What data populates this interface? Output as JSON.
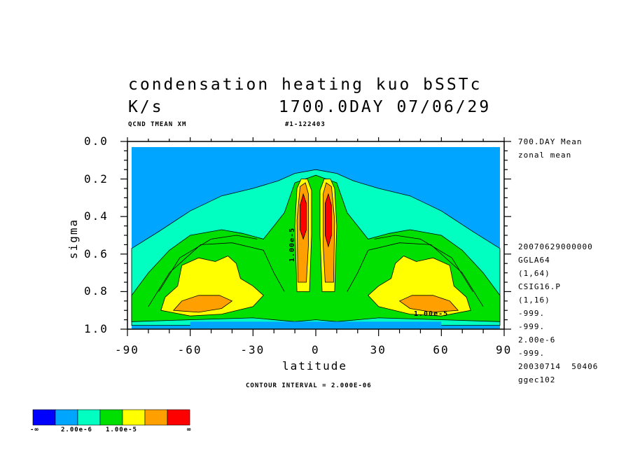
{
  "title": {
    "line1": "condensation heating kuo bSSTc",
    "units": "K/s",
    "date": "1700.0DAY 07/06/29"
  },
  "subheader": {
    "field": "QCND TMEAN XM",
    "run": "#1-122403"
  },
  "side_notes": {
    "top": [
      "700.DAY Mean",
      "zonal mean"
    ],
    "info": [
      "20070629000000",
      "GGLA64",
      "(1,64)",
      "CSIG16.P",
      "(1,16)",
      "-999.",
      "-999.",
      "2.00e-6",
      "-999.",
      "20030714  50406",
      "ggec102"
    ]
  },
  "contour_interval": "CONTOUR INTERVAL = 2.000E-06",
  "contour_labels": [
    "1.00e-5",
    "1.00e-5"
  ],
  "colorbar": {
    "colors": [
      "#0000ff",
      "#00a5ff",
      "#00ffc0",
      "#00e000",
      "#ffff00",
      "#ffa000",
      "#ff0000"
    ],
    "labels": [
      "-∞",
      "2.00e-6",
      "1.00e-5",
      "∞"
    ]
  },
  "chart_data": {
    "type": "contour",
    "xlabel": "latitude",
    "ylabel": "sigma",
    "xlim": [
      -90,
      90
    ],
    "ylim": [
      1.0,
      0.0
    ],
    "xticks": [
      -90,
      -60,
      -30,
      0,
      30,
      60,
      90
    ],
    "yticks": [
      0.0,
      0.2,
      0.4,
      0.6,
      0.8,
      1.0
    ],
    "xtick_labels": [
      "-90",
      "-60",
      "-30",
      "0",
      "30",
      "60",
      "90"
    ],
    "ytick_labels": [
      "0.0",
      "0.2",
      "0.4",
      "0.6",
      "0.8",
      "1.0"
    ],
    "levels_k_per_s": [
      0,
      2e-06,
      1e-05
    ],
    "regions": [
      {
        "level": "cyan",
        "polygon": [
          [
            -88,
            0.57
          ],
          [
            -75,
            0.48
          ],
          [
            -60,
            0.37
          ],
          [
            -45,
            0.29
          ],
          [
            -30,
            0.25
          ],
          [
            -18,
            0.21
          ],
          [
            -10,
            0.17
          ],
          [
            0,
            0.15
          ],
          [
            10,
            0.17
          ],
          [
            18,
            0.21
          ],
          [
            30,
            0.25
          ],
          [
            45,
            0.29
          ],
          [
            60,
            0.37
          ],
          [
            75,
            0.48
          ],
          [
            88,
            0.57
          ],
          [
            88,
            0.98
          ],
          [
            -88,
            0.98
          ]
        ]
      },
      {
        "level": "green",
        "polygon": [
          [
            -88,
            0.82
          ],
          [
            -80,
            0.7
          ],
          [
            -70,
            0.58
          ],
          [
            -60,
            0.5
          ],
          [
            -45,
            0.47
          ],
          [
            -35,
            0.49
          ],
          [
            -25,
            0.52
          ],
          [
            -15,
            0.38
          ],
          [
            -10,
            0.22
          ],
          [
            0,
            0.18
          ],
          [
            10,
            0.22
          ],
          [
            15,
            0.38
          ],
          [
            25,
            0.52
          ],
          [
            35,
            0.49
          ],
          [
            45,
            0.47
          ],
          [
            60,
            0.5
          ],
          [
            70,
            0.58
          ],
          [
            80,
            0.7
          ],
          [
            88,
            0.82
          ],
          [
            88,
            0.96
          ],
          [
            60,
            0.95
          ],
          [
            30,
            0.94
          ],
          [
            10,
            0.96
          ],
          [
            0,
            0.95
          ],
          [
            -10,
            0.96
          ],
          [
            -30,
            0.94
          ],
          [
            -60,
            0.95
          ],
          [
            -88,
            0.96
          ]
        ]
      },
      {
        "level": "yellow",
        "polygon": [
          [
            -74,
            0.9
          ],
          [
            -72,
            0.83
          ],
          [
            -66,
            0.77
          ],
          [
            -64,
            0.66
          ],
          [
            -56,
            0.62
          ],
          [
            -48,
            0.64
          ],
          [
            -42,
            0.61
          ],
          [
            -38,
            0.65
          ],
          [
            -36,
            0.73
          ],
          [
            -30,
            0.77
          ],
          [
            -25,
            0.82
          ],
          [
            -30,
            0.88
          ],
          [
            -45,
            0.92
          ],
          [
            -60,
            0.93
          ]
        ]
      },
      {
        "level": "yellow",
        "polygon": [
          [
            74,
            0.9
          ],
          [
            72,
            0.83
          ],
          [
            66,
            0.77
          ],
          [
            64,
            0.66
          ],
          [
            56,
            0.62
          ],
          [
            48,
            0.64
          ],
          [
            42,
            0.61
          ],
          [
            38,
            0.65
          ],
          [
            36,
            0.73
          ],
          [
            30,
            0.77
          ],
          [
            25,
            0.82
          ],
          [
            30,
            0.88
          ],
          [
            45,
            0.92
          ],
          [
            60,
            0.93
          ]
        ]
      },
      {
        "level": "orange",
        "polygon": [
          [
            -68,
            0.9
          ],
          [
            -64,
            0.85
          ],
          [
            -56,
            0.82
          ],
          [
            -46,
            0.82
          ],
          [
            -40,
            0.85
          ],
          [
            -45,
            0.89
          ],
          [
            -56,
            0.91
          ]
        ]
      },
      {
        "level": "orange",
        "polygon": [
          [
            68,
            0.9
          ],
          [
            64,
            0.85
          ],
          [
            56,
            0.82
          ],
          [
            46,
            0.82
          ],
          [
            40,
            0.85
          ],
          [
            45,
            0.89
          ],
          [
            56,
            0.91
          ]
        ]
      },
      {
        "level": "yellow",
        "polygon": [
          [
            -9,
            0.8
          ],
          [
            -10,
            0.45
          ],
          [
            -9,
            0.25
          ],
          [
            -7,
            0.2
          ],
          [
            -4,
            0.2
          ],
          [
            -2,
            0.26
          ],
          [
            -2,
            0.5
          ],
          [
            -3,
            0.8
          ]
        ]
      },
      {
        "level": "yellow",
        "polygon": [
          [
            9,
            0.8
          ],
          [
            10,
            0.45
          ],
          [
            9,
            0.25
          ],
          [
            7,
            0.2
          ],
          [
            4,
            0.2
          ],
          [
            2,
            0.26
          ],
          [
            2,
            0.5
          ],
          [
            3,
            0.8
          ]
        ]
      },
      {
        "level": "orange",
        "polygon": [
          [
            -8.5,
            0.75
          ],
          [
            -9,
            0.42
          ],
          [
            -7.5,
            0.24
          ],
          [
            -5,
            0.22
          ],
          [
            -3.5,
            0.28
          ],
          [
            -3.5,
            0.55
          ],
          [
            -4.5,
            0.75
          ]
        ]
      },
      {
        "level": "orange",
        "polygon": [
          [
            8.5,
            0.75
          ],
          [
            9,
            0.42
          ],
          [
            7.5,
            0.24
          ],
          [
            5,
            0.22
          ],
          [
            3.5,
            0.28
          ],
          [
            3.5,
            0.55
          ],
          [
            4.5,
            0.75
          ]
        ]
      },
      {
        "level": "red",
        "polygon": [
          [
            -7.5,
            0.47
          ],
          [
            -7.5,
            0.34
          ],
          [
            -6,
            0.28
          ],
          [
            -4.5,
            0.33
          ],
          [
            -4.5,
            0.47
          ],
          [
            -6,
            0.52
          ]
        ]
      },
      {
        "level": "red",
        "polygon": [
          [
            7.5,
            0.5
          ],
          [
            7.5,
            0.34
          ],
          [
            6,
            0.28
          ],
          [
            4.5,
            0.33
          ],
          [
            4.5,
            0.5
          ],
          [
            6,
            0.56
          ]
        ]
      }
    ]
  }
}
